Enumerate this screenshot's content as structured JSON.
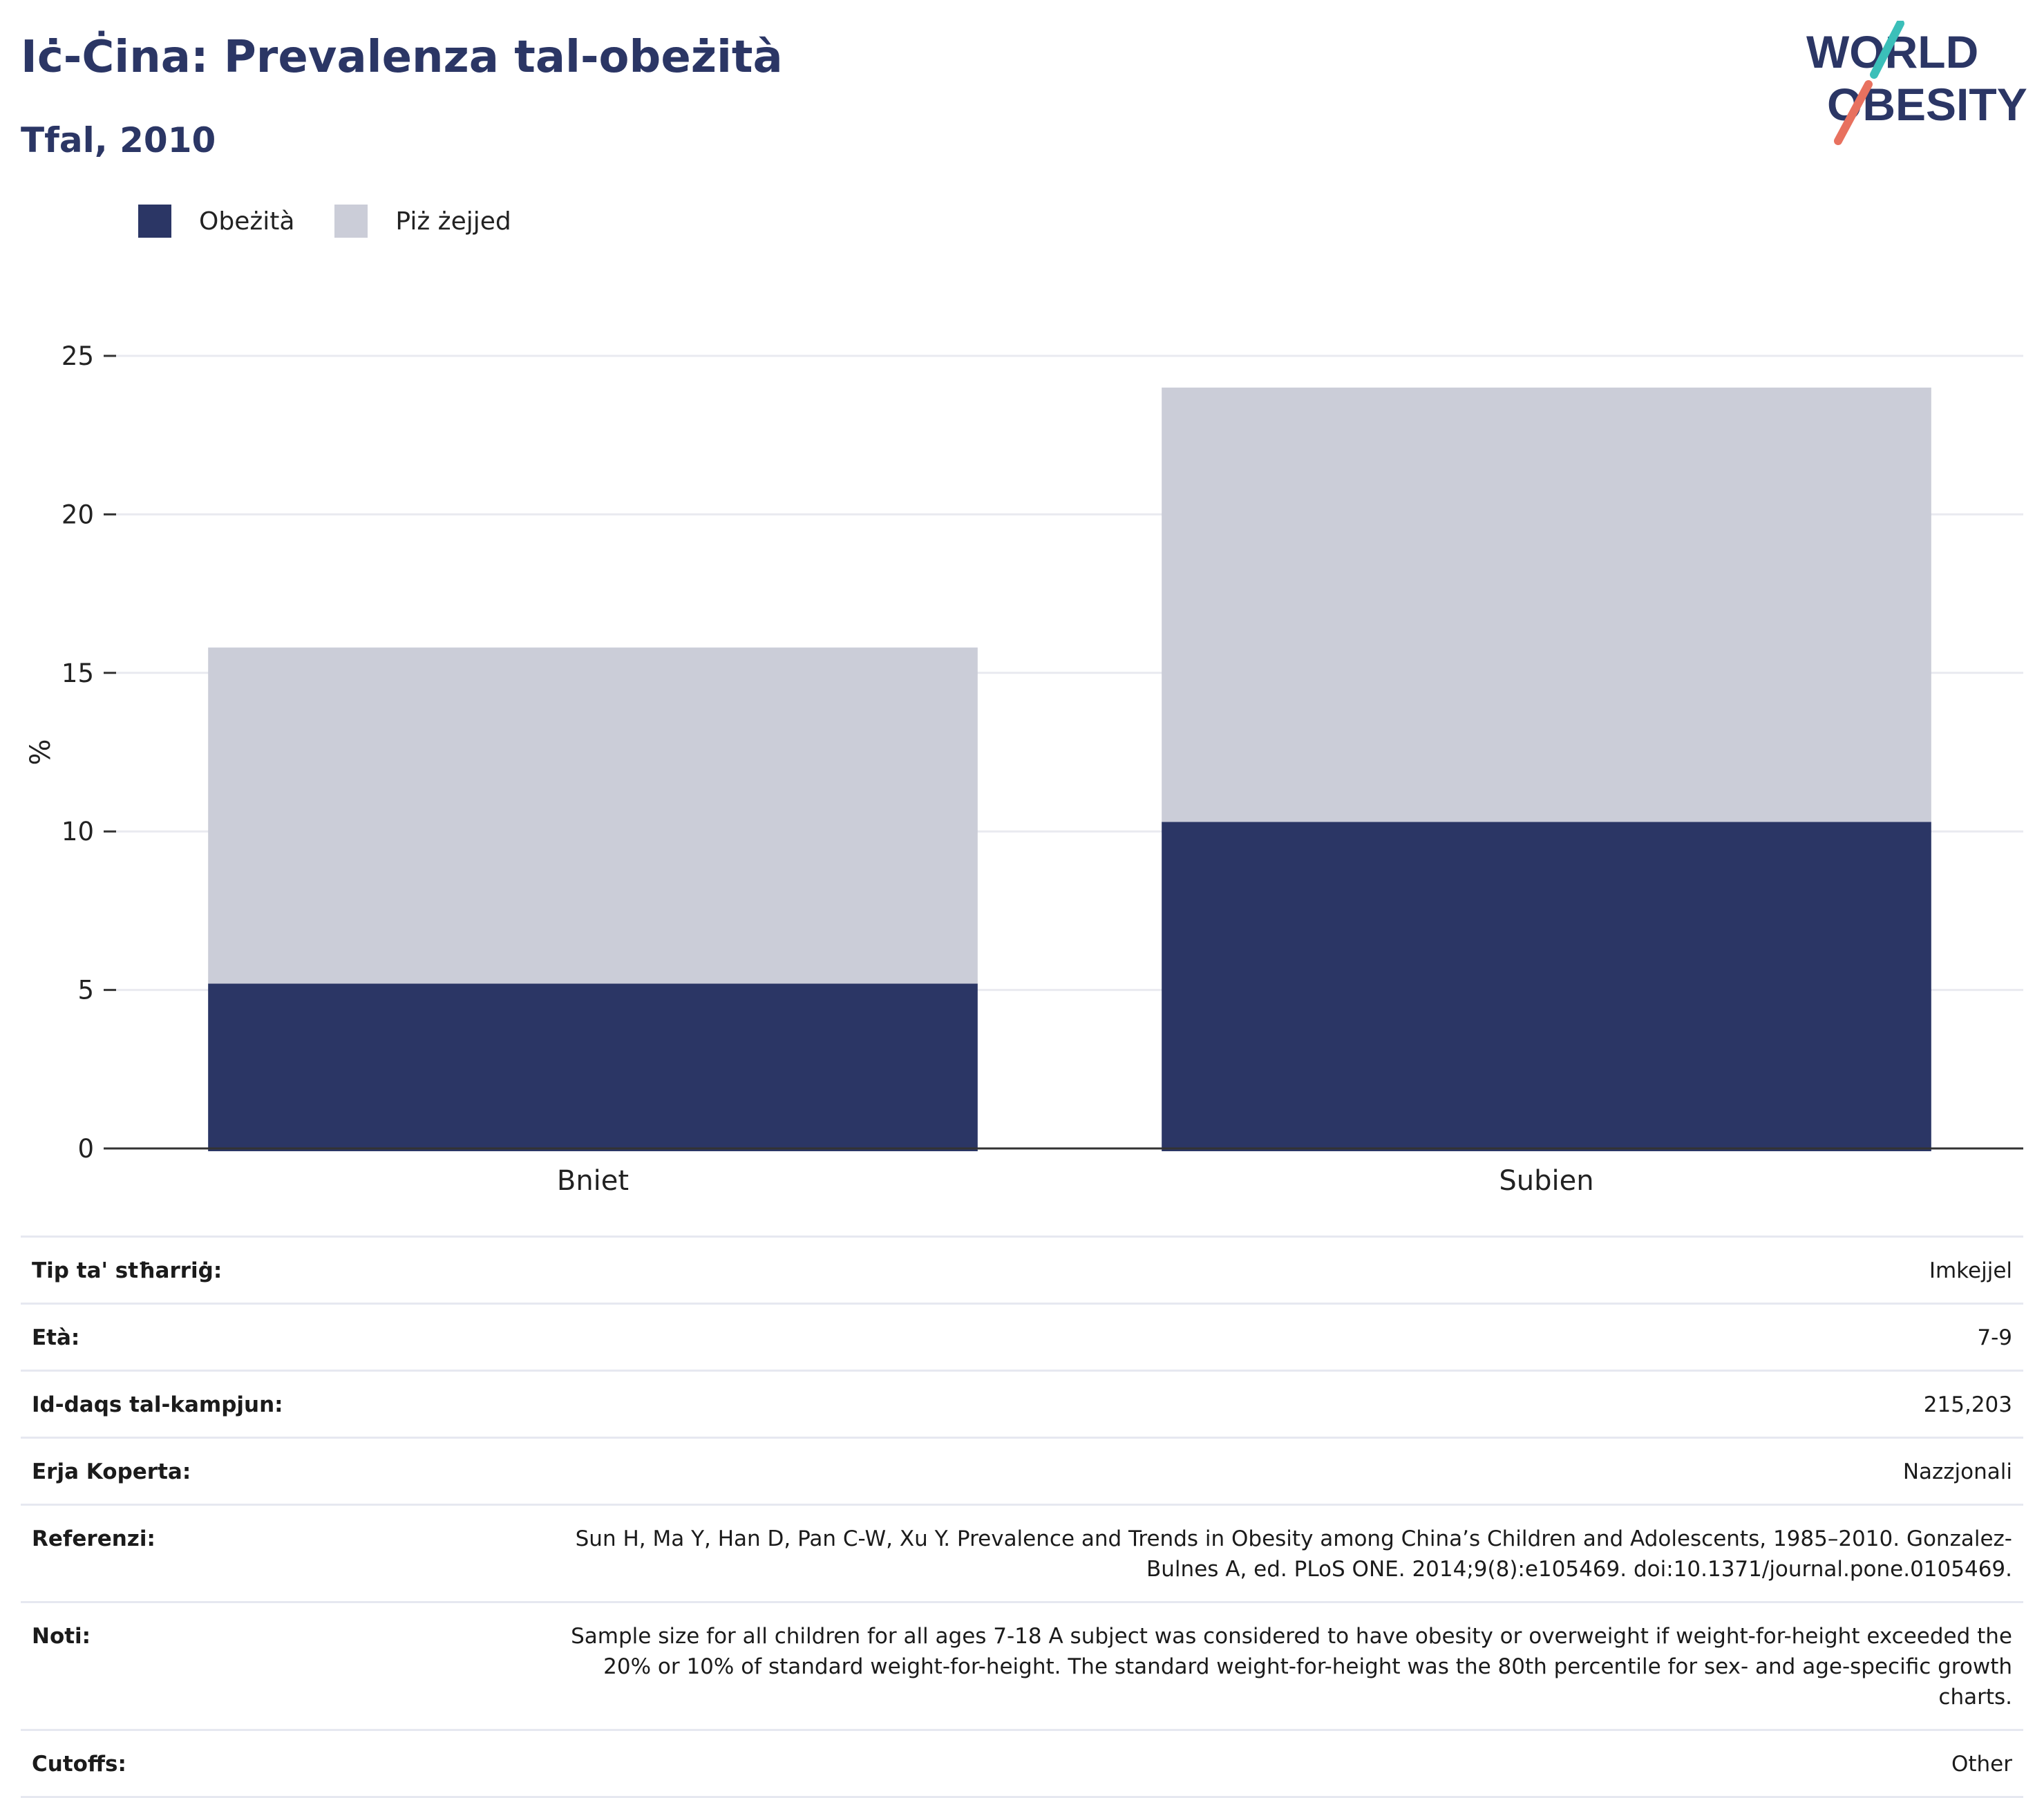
{
  "header": {
    "title": "Iċ-Ċina: Prevalenza tal-obeżità",
    "subtitle": "Tfal, 2010"
  },
  "logo": {
    "line1": "WORLD",
    "line2": "OBESITY"
  },
  "colors": {
    "obesity": "#2b3665",
    "overweight": "#cbcdd8",
    "brand_teal": "#3bbfb9",
    "brand_coral": "#e8715f",
    "title": "#2b3665"
  },
  "chart_data": {
    "type": "bar",
    "stacked": true,
    "categories": [
      "Bniet",
      "Subien"
    ],
    "series": [
      {
        "name": "Obeżità",
        "values": [
          5.2,
          10.3
        ],
        "color": "#2b3665"
      },
      {
        "name": "Piż żejjed",
        "values": [
          10.6,
          13.7
        ],
        "color": "#cbcdd8"
      }
    ],
    "ylabel": "%",
    "ylim": [
      0,
      25
    ],
    "yticks": [
      0,
      5,
      10,
      15,
      20,
      25
    ],
    "grid": true,
    "legend_position": "top-left"
  },
  "info": [
    {
      "label": "Tip ta' stħarriġ:",
      "value": "Imkejjel"
    },
    {
      "label": "Età:",
      "value": "7-9"
    },
    {
      "label": "Id-daqs tal-kampjun:",
      "value": "215,203"
    },
    {
      "label": "Erja Koperta:",
      "value": "Nazzjonali"
    },
    {
      "label": "Referenzi:",
      "value": "Sun H, Ma Y, Han D, Pan C-W, Xu Y. Prevalence and Trends in Obesity among China’s Children and Adolescents, 1985–2010. Gonzalez-Bulnes A, ed. PLoS ONE. 2014;9(8):e105469. doi:10.1371/journal.pone.0105469."
    },
    {
      "label": "Noti:",
      "value": "Sample size for all children for all ages 7-18 A subject was considered to have obesity or overweight if weight-for-height exceeded the 20% or 10% of standard weight-for-height. The standard weight-for-height was the 80th percentile for sex- and age-specific growth charts."
    },
    {
      "label": "Cutoffs:",
      "value": "Other"
    }
  ]
}
